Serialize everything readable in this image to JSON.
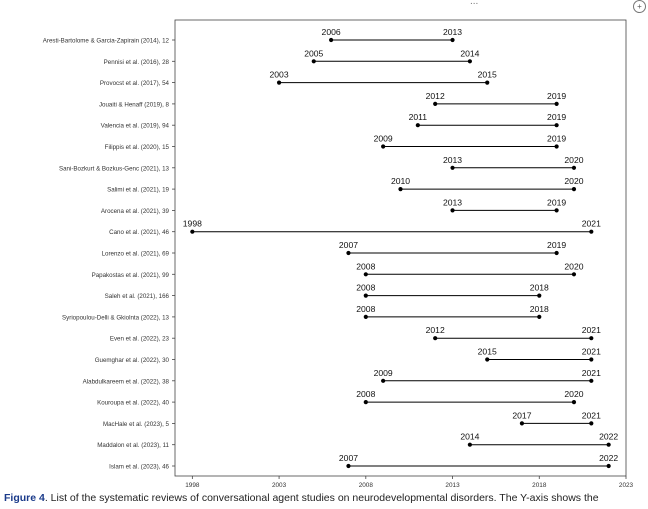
{
  "header": {
    "fragment": "...",
    "circle_glyph": "+"
  },
  "caption": {
    "label": "Figure 4",
    "text": ". List of the systematic reviews of conversational agent studies on neurodevelopmental disorders. The Y-axis shows the"
  },
  "chart_data": {
    "type": "range",
    "title": "",
    "xlabel": "",
    "ylabel": "",
    "xlim": [
      1997,
      2023
    ],
    "xticks": [
      1998,
      2003,
      2008,
      2013,
      2018,
      2023
    ],
    "grid": false,
    "colors": {
      "line": "#000000",
      "axis": "#444444",
      "text": "#111111"
    },
    "categories": [
      "Aresti-Bartolome & Garcia-Zapirain (2014), 12",
      "Pennisi et al. (2016), 28",
      "Provocst et al. (2017), 54",
      "Jouaiti & Henaff (2019), 8",
      "Valencia et al. (2019), 94",
      "Filippis et al. (2020), 15",
      "Sani-Bozkurt & Bozkus-Genc (2021), 13",
      "Salimi et al. (2021), 19",
      "Arocena et al. (2021), 39",
      "Cano et al. (2021), 46",
      "Lorenzo et al. (2021), 69",
      "Papakostas et al. (2021), 99",
      "Saleh et al. (2021), 166",
      "Syriopoulou-Delli & Gkiolnta (2022), 13",
      "Even et al. (2022), 23",
      "Guemghar et al. (2022), 30",
      "Alabdulkareem et al. (2022), 38",
      "Kouroupa et al. (2022), 40",
      "MacHale et al. (2023), 5",
      "Maddalon et al. (2023), 11",
      "Islam et al. (2023), 46"
    ],
    "starts": [
      2006,
      2005,
      2003,
      2012,
      2011,
      2009,
      2013,
      2010,
      2013,
      1998,
      2007,
      2008,
      2008,
      2008,
      2012,
      2015,
      2009,
      2008,
      2017,
      2014,
      2007
    ],
    "ends": [
      2013,
      2014,
      2015,
      2019,
      2019,
      2019,
      2020,
      2020,
      2019,
      2021,
      2019,
      2020,
      2018,
      2018,
      2021,
      2021,
      2021,
      2020,
      2021,
      2022,
      2022
    ]
  }
}
